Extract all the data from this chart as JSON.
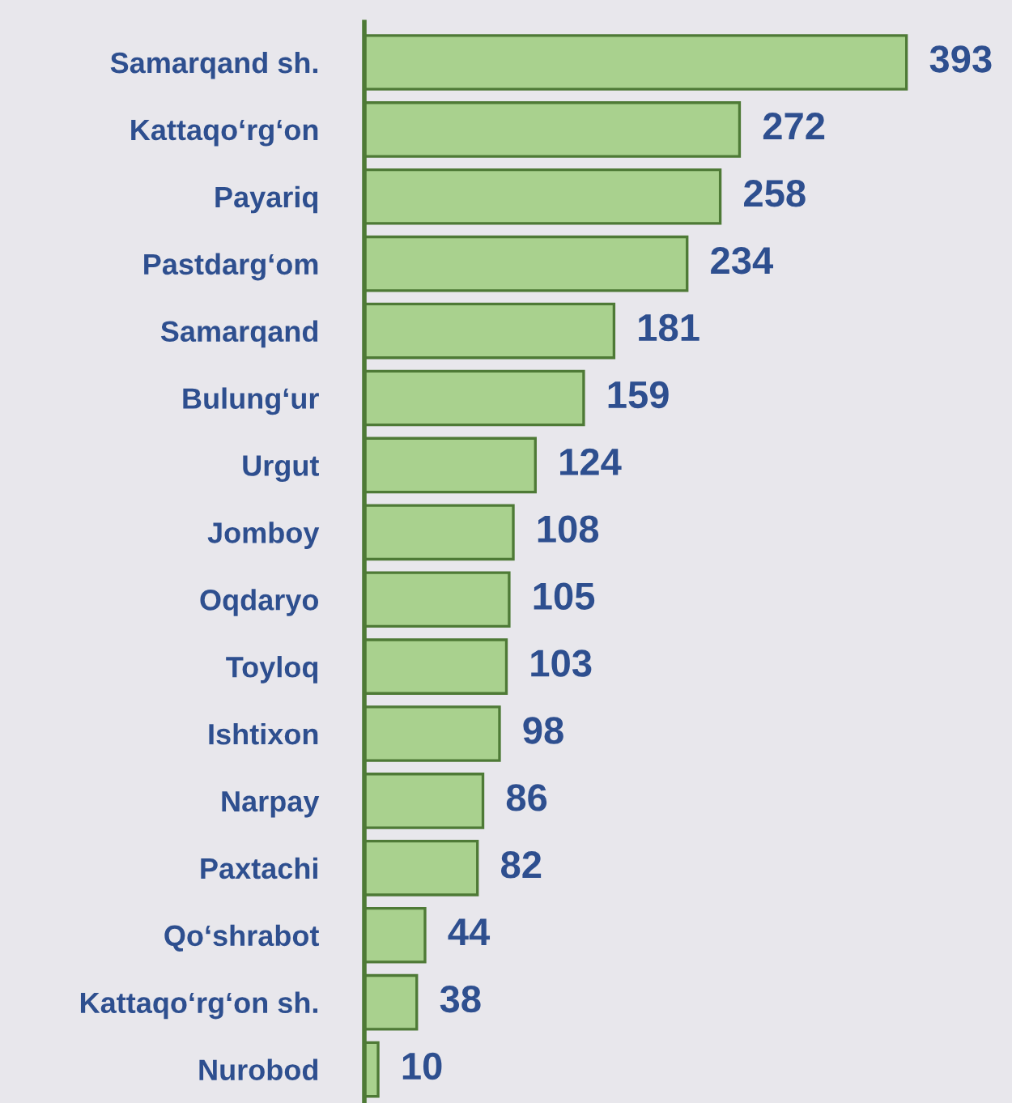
{
  "chart_data": {
    "type": "bar",
    "orientation": "horizontal",
    "categories": [
      "Samarqand sh.",
      "Kattaqo‘rg‘on",
      "Payariq",
      "Pastdarg‘om",
      "Samarqand",
      "Bulung‘ur",
      "Urgut",
      "Jomboy",
      "Oqdaryo",
      "Toyloq",
      "Ishtixon",
      "Narpay",
      "Paxtachi",
      "Qo‘shrabot",
      "Kattaqo‘rg‘on sh.",
      "Nurobod"
    ],
    "values": [
      393,
      272,
      258,
      234,
      181,
      159,
      124,
      108,
      105,
      103,
      98,
      86,
      82,
      44,
      38,
      10
    ],
    "color": "#a9d18e",
    "data_labels": true,
    "grid": false,
    "legend": false,
    "tick_labels": "y"
  }
}
